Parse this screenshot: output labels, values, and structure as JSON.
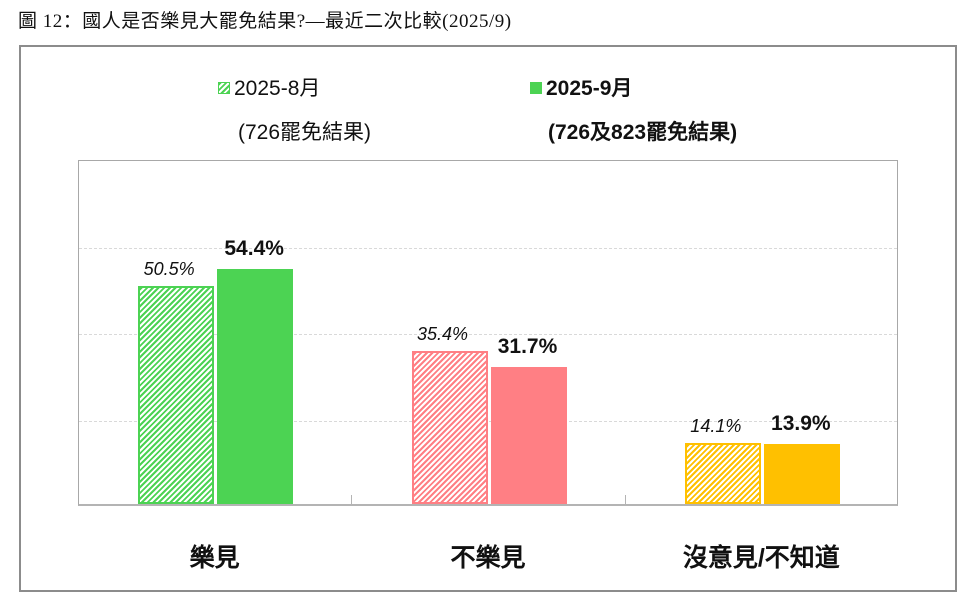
{
  "figure": {
    "title": "圖 12：國人是否樂見大罷免結果?—最近二次比較(2025/9)"
  },
  "legend": {
    "items": [
      {
        "label": "2025-8月",
        "sub": "(726罷免結果)",
        "style": "hatched",
        "bold": false
      },
      {
        "label": "2025-9月",
        "sub": "(726及823罷免結果)",
        "style": "solid",
        "bold": true
      }
    ]
  },
  "chart_data": {
    "type": "bar",
    "title": "國人是否樂見大罷免結果?—最近二次比較(2025/9)",
    "xlabel": "",
    "ylabel": "",
    "ylim": [
      0,
      80
    ],
    "grid": true,
    "gridlines": [
      20,
      40,
      60
    ],
    "legend_position": "top",
    "categories": [
      "樂見",
      "不樂見",
      "沒意見/不知道"
    ],
    "category_colors": [
      "#4cd353",
      "#ff7f84",
      "#ffc000"
    ],
    "series": [
      {
        "name": "2025-8月 (726罷免結果)",
        "pattern": "hatched",
        "values": [
          50.5,
          35.4,
          14.1
        ],
        "labels": [
          "50.5%",
          "35.4%",
          "14.1%"
        ]
      },
      {
        "name": "2025-9月 (726及823罷免結果)",
        "pattern": "solid",
        "values": [
          54.4,
          31.7,
          13.9
        ],
        "labels": [
          "54.4%",
          "31.7%",
          "13.9%"
        ]
      }
    ]
  }
}
